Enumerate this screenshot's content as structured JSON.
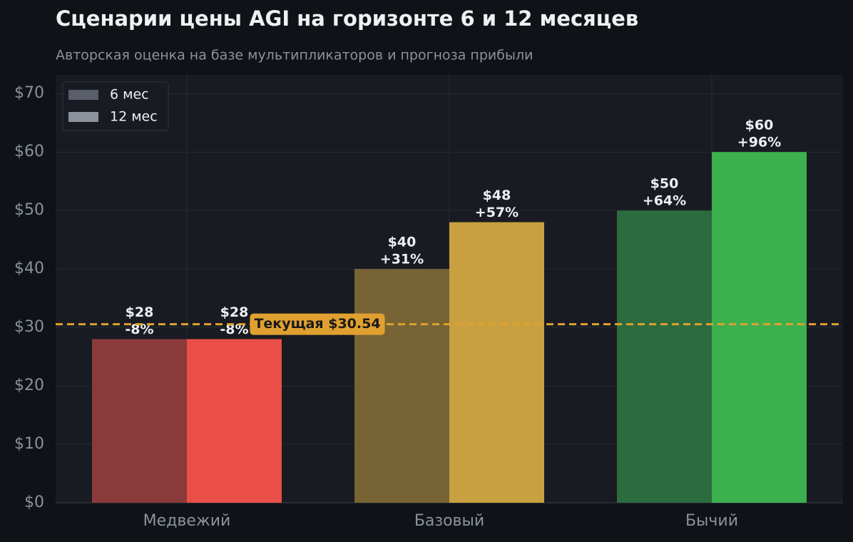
{
  "chart_data": {
    "type": "bar",
    "title": "Сценарии цены AGI на горизонте 6 и 12 месяцев",
    "subtitle": "Авторская оценка на базе мультипликаторов и прогноза прибыли",
    "categories": [
      "Медвежий",
      "Базовый",
      "Бычий"
    ],
    "series": [
      {
        "name": "6 мес",
        "color": "#5a5e6a",
        "colors": [
          "#8b3a3c",
          "#786334",
          "#2b6b3d"
        ],
        "values": [
          28,
          40,
          50
        ],
        "value_labels": [
          "$28",
          "$40",
          "$50"
        ],
        "change_labels": [
          "-8%",
          "+31%",
          "+64%"
        ]
      },
      {
        "name": "12 мес",
        "color": "#8b929c",
        "colors": [
          "#ea4f47",
          "#c9a040",
          "#3cb04d"
        ],
        "values": [
          28,
          48,
          60
        ],
        "value_labels": [
          "$28",
          "$48",
          "$60"
        ],
        "change_labels": [
          "-8%",
          "+57%",
          "+96%"
        ]
      }
    ],
    "ylim": [
      0,
      73.2
    ],
    "yticks": [
      {
        "value": 0,
        "label": "$0"
      },
      {
        "value": 10,
        "label": "$10"
      },
      {
        "value": 20,
        "label": "$20"
      },
      {
        "value": 30,
        "label": "$30"
      },
      {
        "value": 40,
        "label": "$40"
      },
      {
        "value": 50,
        "label": "$50"
      },
      {
        "value": 60,
        "label": "$60"
      },
      {
        "value": 70,
        "label": "$70"
      }
    ],
    "reference_line": {
      "value": 30.54,
      "label": "Текущая $30.54",
      "color": "#e0a030"
    },
    "grid": true,
    "legend": "upper-left"
  }
}
